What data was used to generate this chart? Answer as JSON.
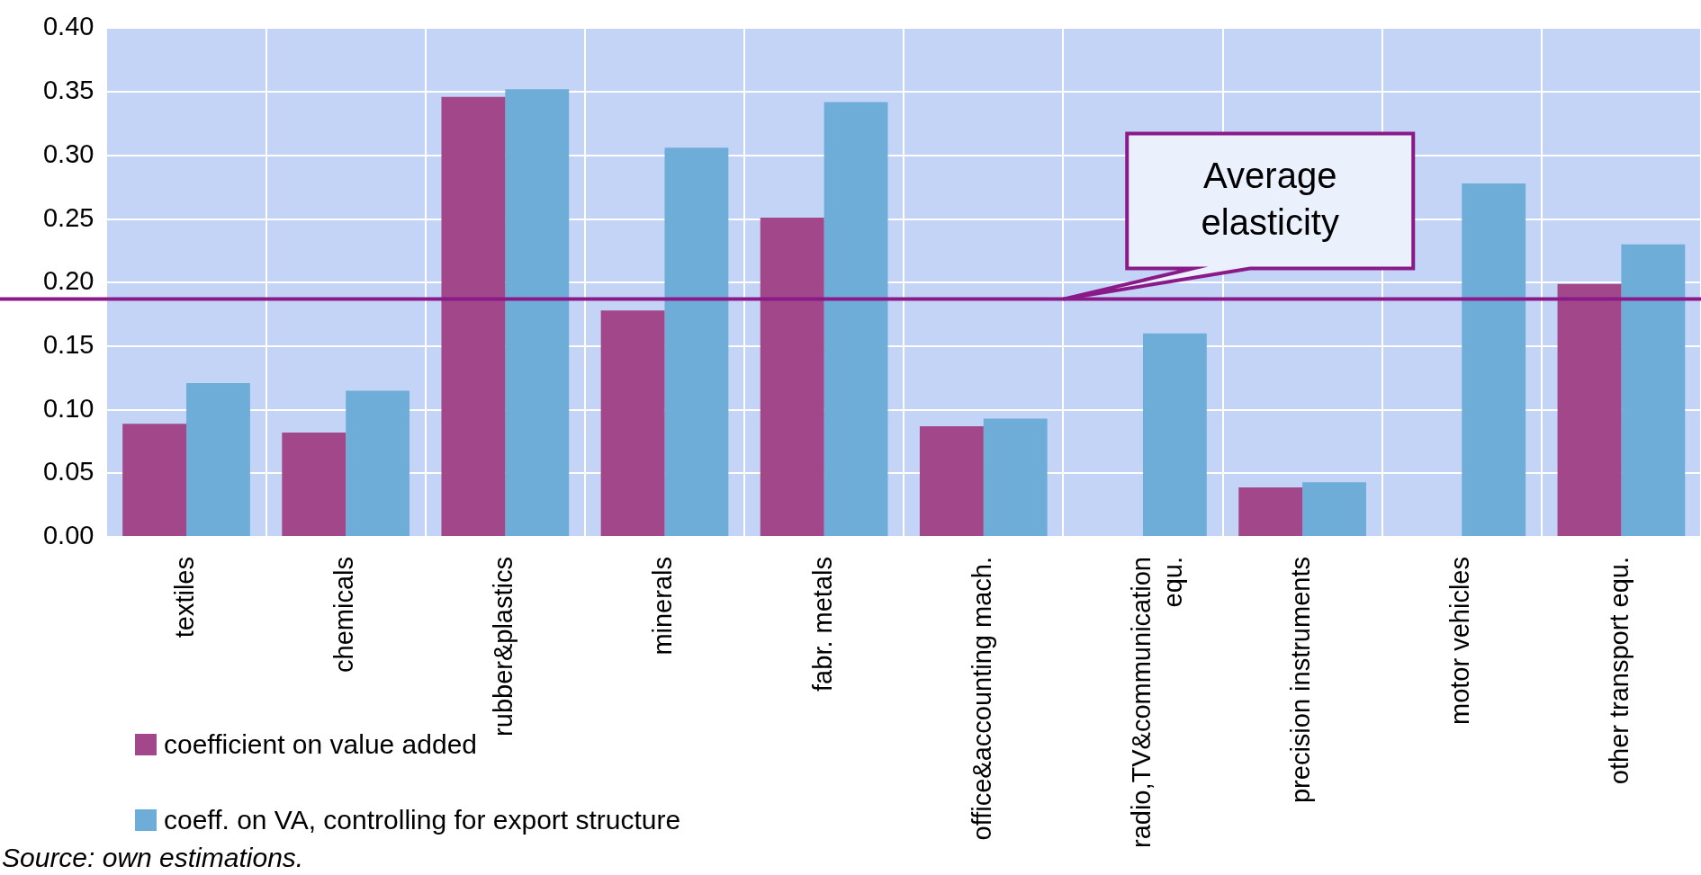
{
  "chart_data": {
    "type": "bar",
    "categories": [
      "textiles",
      "chemicals",
      "rubber&plastics",
      "minerals",
      "fabr. metals",
      "office&accounting mach.",
      "radio,TV&communication equ.",
      "precision instruments",
      "motor vehicles",
      "other transport equ."
    ],
    "series": [
      {
        "name": "coefficient on value added",
        "color": "#a2478a",
        "values": [
          0.089,
          0.082,
          0.346,
          0.178,
          0.251,
          0.087,
          null,
          0.039,
          null,
          0.199
        ]
      },
      {
        "name": "coeff. on VA, controlling for export structure",
        "color": "#6fadd9",
        "values": [
          0.121,
          0.115,
          0.352,
          0.306,
          0.342,
          0.093,
          0.16,
          0.043,
          0.278,
          0.23
        ]
      }
    ],
    "ylim": [
      0,
      0.4
    ],
    "yticks": [
      {
        "value": 0,
        "label": "0.00"
      },
      {
        "value": 0.05,
        "label": "0.05"
      },
      {
        "value": 0.1,
        "label": "0.10"
      },
      {
        "value": 0.15,
        "label": "0.15"
      },
      {
        "value": 0.2,
        "label": "0.20"
      },
      {
        "value": 0.25,
        "label": "0.25"
      },
      {
        "value": 0.3,
        "label": "0.30"
      },
      {
        "value": 0.35,
        "label": "0.35"
      },
      {
        "value": 0.4,
        "label": "0.40"
      }
    ],
    "grid": true,
    "legend": "bottom left",
    "ref_lines": [
      {
        "axis": "y",
        "value": 0.187,
        "label": "Average elasticity",
        "color": "#8b1a89"
      }
    ],
    "annotations": [
      "Source: own estimations."
    ]
  }
}
